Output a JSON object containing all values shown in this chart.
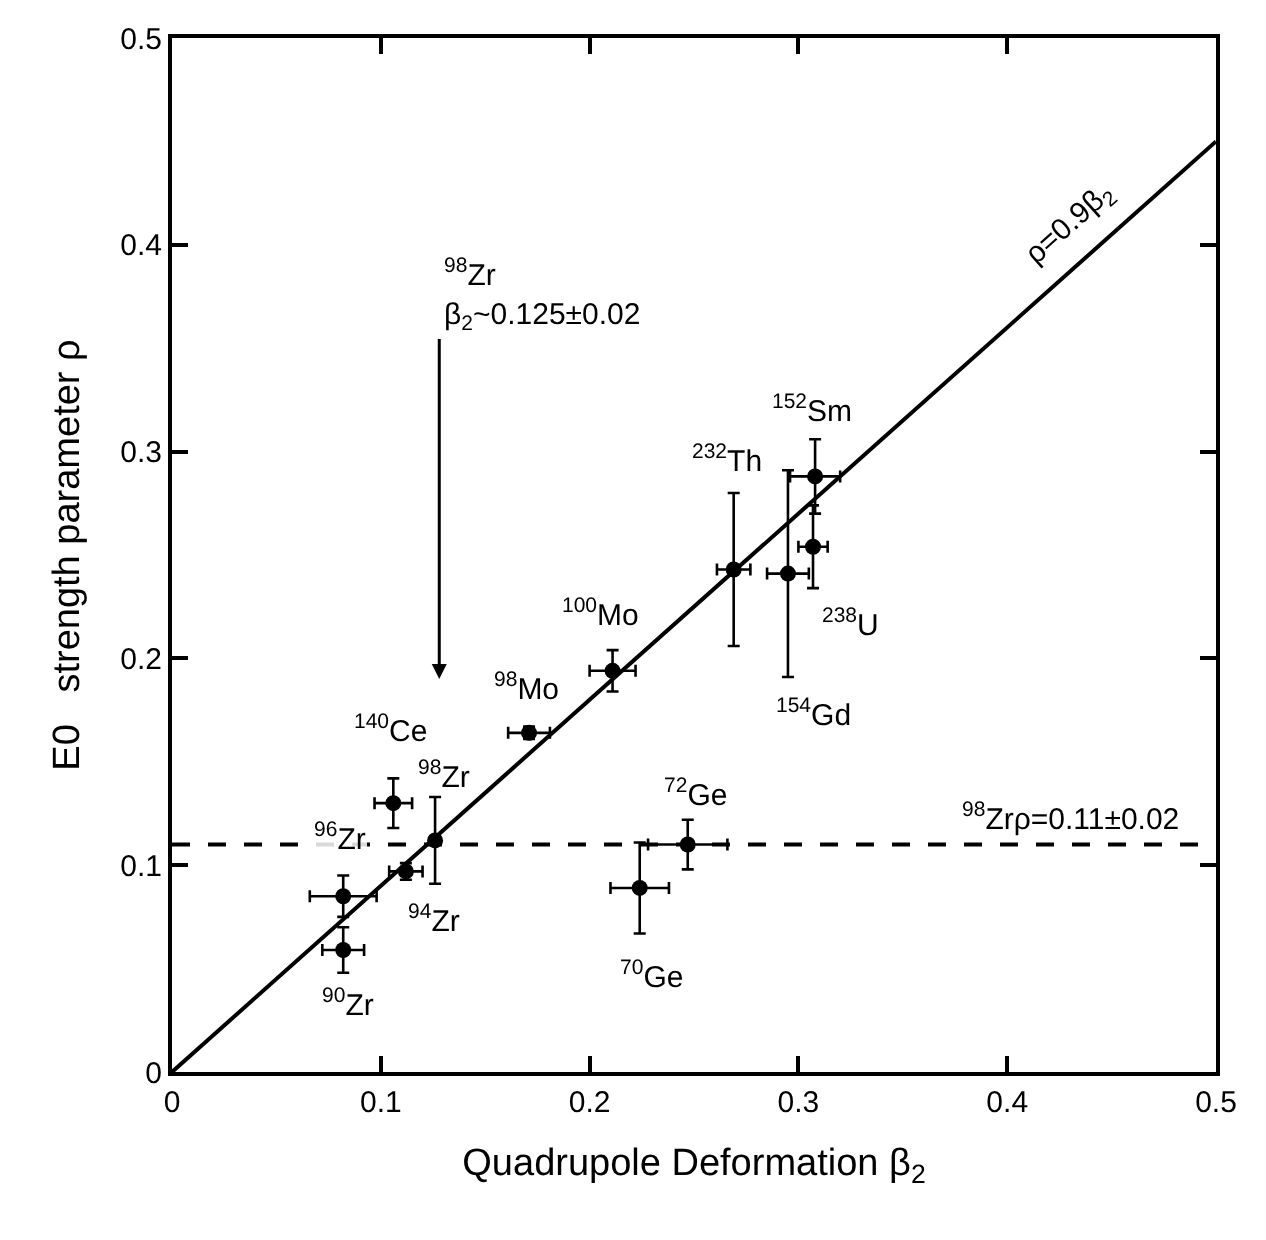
{
  "chart_data": {
    "type": "scatter",
    "xlabel": "Quadrupole Deformation β$_{2}$",
    "ylabel": "E0   strength parameter ρ",
    "xlim": [
      0,
      0.5
    ],
    "ylim": [
      0,
      0.5
    ],
    "xticks": [
      0,
      0.1,
      0.2,
      0.3,
      0.4,
      0.5
    ],
    "yticks": [
      0,
      0.1,
      0.2,
      0.3,
      0.4,
      0.5
    ],
    "marker": "circle",
    "series": [
      {
        "color": "#000000",
        "x": [
          0.082,
          0.082,
          0.112,
          0.126,
          0.106,
          0.171,
          0.211,
          0.224,
          0.247,
          0.269,
          0.295,
          0.308,
          0.307
        ],
        "values": [
          0.059,
          0.085,
          0.097,
          0.112,
          0.13,
          0.164,
          0.194,
          0.089,
          0.11,
          0.243,
          0.241,
          0.288,
          0.254
        ],
        "errors": [
          0.011,
          0.01,
          0.004,
          0.021,
          0.012,
          0.003,
          0.01,
          0.022,
          0.012,
          0.037,
          0.05,
          0.018,
          0.02
        ],
        "xerrors": [
          0.01,
          0.016,
          0.008,
          null,
          0.009,
          0.01,
          0.011,
          0.014,
          0.019,
          0.008,
          0.01,
          0.012,
          0.007
        ]
      },
      {
        "type": "line",
        "marker": "none",
        "color": "#000000",
        "x": [
          0,
          0.5
        ],
        "values": [
          0,
          0.45
        ]
      }
    ],
    "ref_lines": [
      {
        "axis": "y",
        "value": 0.11,
        "label": "$^{98}$Zrρ=0.11±0.02",
        "line_style": "dashed",
        "color": "#000000"
      }
    ],
    "annotations": [
      {
        "text": "$^{90}$Zr",
        "x": 0.082,
        "y": 0.059
      },
      {
        "text": "$^{96}$Zr",
        "x": 0.082,
        "y": 0.085
      },
      {
        "text": "$^{94}$Zr",
        "x": 0.112,
        "y": 0.097
      },
      {
        "text": "$^{98}$Zr",
        "x": 0.126,
        "y": 0.112
      },
      {
        "text": "$^{140}$Ce",
        "x": 0.106,
        "y": 0.13
      },
      {
        "text": "$^{98}$Mo",
        "x": 0.171,
        "y": 0.164
      },
      {
        "text": "$^{100}$Mo",
        "x": 0.211,
        "y": 0.194
      },
      {
        "text": "$^{70}$Ge",
        "x": 0.224,
        "y": 0.089
      },
      {
        "text": "$^{72}$Ge",
        "x": 0.247,
        "y": 0.11
      },
      {
        "text": "$^{232}$Th",
        "x": 0.269,
        "y": 0.28
      },
      {
        "text": "$^{152}$Sm",
        "x": 0.308,
        "y": 0.288
      },
      {
        "text": "$^{238}$U",
        "x": 0.307,
        "y": 0.254
      },
      {
        "text": "$^{154}$Gd",
        "x": 0.295,
        "y": 0.191
      },
      "$^{98}$Zr\nβ$_{2}$~0.125±0.02",
      {
        "text": "ρ=0.9β$_{2}$",
        "x": 0.44,
        "y": 0.396
      }
    ]
  }
}
